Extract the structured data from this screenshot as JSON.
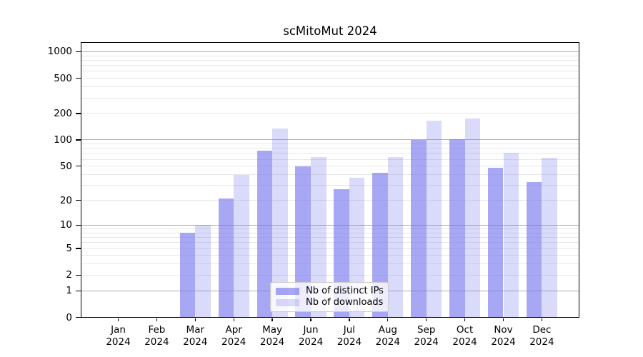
{
  "chart_data": {
    "type": "bar",
    "title": "scMitoMut 2024",
    "categories": [
      "Jan 2024",
      "Feb 2024",
      "Mar 2024",
      "Apr 2024",
      "May 2024",
      "Jun 2024",
      "Jul 2024",
      "Aug 2024",
      "Sep 2024",
      "Oct 2024",
      "Nov 2024",
      "Dec 2024"
    ],
    "series": [
      {
        "name": "Nb of distinct IPs",
        "values": [
          0,
          0,
          8,
          21,
          75,
          50,
          27,
          42,
          100,
          102,
          48,
          33
        ]
      },
      {
        "name": "Nb of downloads",
        "values": [
          0,
          0,
          10,
          40,
          134,
          64,
          37,
          64,
          167,
          175,
          71,
          62
        ]
      }
    ],
    "yscale": "log1p",
    "ylim": [
      0,
      1374
    ],
    "yticks": [
      1000,
      500,
      200,
      100,
      50,
      20,
      10,
      5,
      2,
      1,
      0
    ],
    "grid_major_values": [
      1,
      10,
      100,
      1000
    ],
    "grid_minor_values": [
      2,
      3,
      4,
      5,
      6,
      7,
      8,
      9,
      20,
      30,
      40,
      50,
      60,
      70,
      80,
      90,
      200,
      300,
      400,
      500,
      600,
      700,
      800,
      900
    ],
    "grid": true,
    "legend_position": "lower center",
    "xlabel": "",
    "ylabel": ""
  },
  "colors": {
    "bar_base": "#7171ed",
    "bar_dark_effective": "#a6a6f2",
    "bar_light_effective": "#dadaf7",
    "grid_major": "#b0b0b0",
    "grid_minor": "#e7e7e7",
    "spine": "#000000",
    "text": "#000000"
  },
  "opacity": {
    "dark": 0.62,
    "light": 0.26
  }
}
